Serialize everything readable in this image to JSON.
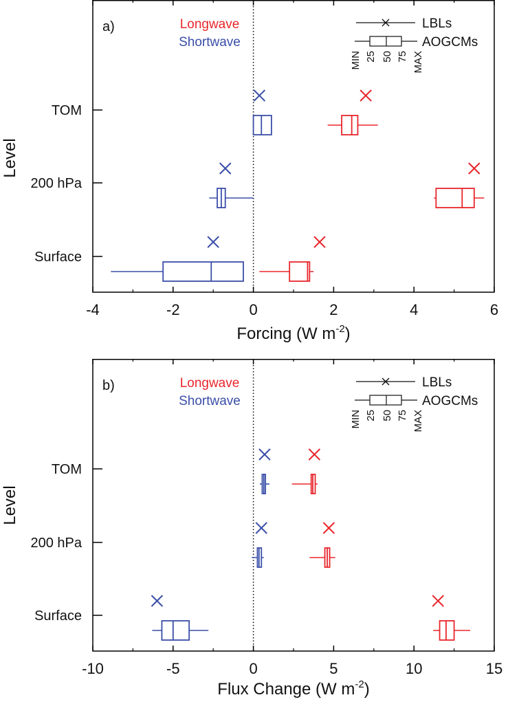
{
  "chart_data": [
    {
      "panel_label": "a)",
      "type": "box",
      "xlabel_main": "Forcing (W m",
      "xlabel_sup": "-2",
      "xlabel_close": ")",
      "ylabel": "Level",
      "xlim": [
        -4,
        6
      ],
      "xticks": [
        "-4",
        "-2",
        "0",
        "2",
        "4",
        "6"
      ],
      "xtick_values": [
        -4,
        -2,
        0,
        2,
        4,
        6
      ],
      "categories": [
        "TOM",
        "200 hPa",
        "Surface"
      ],
      "colors": {
        "Longwave": "#e8262c",
        "Shortwave": "#3a4ea8"
      },
      "legend": {
        "lw": "Longwave",
        "sw": "Shortwave",
        "lbl": "LBLs",
        "aogcm": "AOGCMs",
        "stats": [
          "MIN",
          "25",
          "50",
          "75",
          "MAX"
        ]
      },
      "series": [
        {
          "name": "Shortwave",
          "data": [
            {
              "level": "TOM",
              "lbl": 0.15,
              "min": 0.0,
              "q1": 0.0,
              "med": 0.2,
              "q3": 0.45,
              "max": 0.45
            },
            {
              "level": "200 hPa",
              "lbl": -0.7,
              "min": -1.1,
              "q1": -0.9,
              "med": -0.8,
              "q3": -0.7,
              "max": 0.0
            },
            {
              "level": "Surface",
              "lbl": -1.0,
              "min": -3.55,
              "q1": -2.25,
              "med": -1.05,
              "q3": -0.25,
              "max": -0.25
            }
          ]
        },
        {
          "name": "Longwave",
          "data": [
            {
              "level": "TOM",
              "lbl": 2.8,
              "min": 1.85,
              "q1": 2.2,
              "med": 2.45,
              "q3": 2.6,
              "max": 3.1
            },
            {
              "level": "200 hPa",
              "lbl": 5.5,
              "min": 4.5,
              "q1": 4.55,
              "med": 5.2,
              "q3": 5.5,
              "max": 5.75
            },
            {
              "level": "Surface",
              "lbl": 1.65,
              "min": 0.15,
              "q1": 0.9,
              "med": 1.35,
              "q3": 1.4,
              "max": 1.5
            }
          ]
        }
      ]
    },
    {
      "panel_label": "b)",
      "type": "box",
      "xlabel_main": "Flux Change (W m",
      "xlabel_sup": "-2",
      "xlabel_close": ")",
      "ylabel": "Level",
      "xlim": [
        -10,
        15
      ],
      "xticks": [
        "-10",
        "-5",
        "0",
        "5",
        "10",
        "15"
      ],
      "xtick_values": [
        -10,
        -5,
        0,
        5,
        10,
        15
      ],
      "categories": [
        "TOM",
        "200 hPa",
        "Surface"
      ],
      "colors": {
        "Longwave": "#e8262c",
        "Shortwave": "#3a4ea8"
      },
      "legend": {
        "lw": "Longwave",
        "sw": "Shortwave",
        "lbl": "LBLs",
        "aogcm": "AOGCMs",
        "stats": [
          "MIN",
          "25",
          "50",
          "75",
          "MAX"
        ]
      },
      "series": [
        {
          "name": "Shortwave",
          "data": [
            {
              "level": "TOM",
              "lbl": 0.7,
              "min": 0.4,
              "q1": 0.55,
              "med": 0.65,
              "q3": 0.75,
              "max": 1.0
            },
            {
              "level": "200 hPa",
              "lbl": 0.5,
              "min": -0.1,
              "q1": 0.25,
              "med": 0.35,
              "q3": 0.5,
              "max": 0.65
            },
            {
              "level": "Surface",
              "lbl": -6.0,
              "min": -6.3,
              "q1": -5.7,
              "med": -5.0,
              "q3": -4.0,
              "max": -2.8
            }
          ]
        },
        {
          "name": "Longwave",
          "data": [
            {
              "level": "TOM",
              "lbl": 3.8,
              "min": 2.4,
              "q1": 3.6,
              "med": 3.7,
              "q3": 3.85,
              "max": 4.0
            },
            {
              "level": "200 hPa",
              "lbl": 4.7,
              "min": 3.5,
              "q1": 4.45,
              "med": 4.6,
              "q3": 4.75,
              "max": 5.1
            },
            {
              "level": "Surface",
              "lbl": 11.5,
              "min": 11.2,
              "q1": 11.6,
              "med": 12.0,
              "q3": 12.5,
              "max": 13.5
            }
          ]
        }
      ]
    }
  ]
}
